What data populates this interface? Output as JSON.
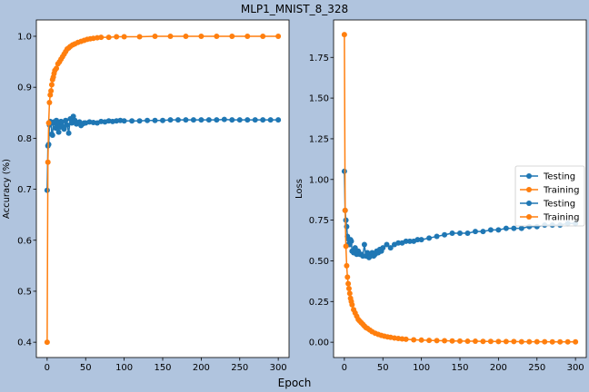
{
  "figure": {
    "title": "MLP1_MNIST_8_328",
    "xlabel": "Epoch",
    "background": "#b0c4de"
  },
  "chart_data": [
    {
      "type": "line",
      "ylabel": "Accuracy (%)",
      "xlim": [
        -14,
        314
      ],
      "ylim": [
        0.37,
        1.032
      ],
      "xticks": [
        0,
        50,
        100,
        150,
        200,
        250,
        300
      ],
      "yticks": [
        0.4,
        0.5,
        0.6,
        0.7,
        0.8,
        0.9,
        1.0
      ],
      "ytick_labels": [
        "0.4",
        "0.5",
        "0.6",
        "0.7",
        "0.8",
        "0.9",
        "1.0"
      ],
      "legend": false,
      "series": [
        {
          "role": "testing",
          "color": "#1f77b4",
          "x": [
            0,
            1,
            2,
            3,
            4,
            5,
            6,
            7,
            8,
            9,
            10,
            11,
            12,
            13,
            14,
            15,
            16,
            17,
            18,
            19,
            20,
            22,
            24,
            26,
            28,
            30,
            32,
            34,
            36,
            38,
            40,
            42,
            44,
            46,
            48,
            50,
            55,
            60,
            65,
            70,
            75,
            80,
            85,
            90,
            95,
            100,
            110,
            120,
            130,
            140,
            150,
            160,
            170,
            180,
            190,
            200,
            210,
            220,
            230,
            240,
            250,
            260,
            270,
            280,
            290,
            300
          ],
          "y": [
            0.698,
            0.785,
            0.788,
            0.826,
            0.833,
            0.83,
            0.808,
            0.806,
            0.83,
            0.832,
            0.83,
            0.82,
            0.835,
            0.826,
            0.83,
            0.812,
            0.83,
            0.822,
            0.833,
            0.831,
            0.823,
            0.818,
            0.835,
            0.826,
            0.81,
            0.838,
            0.83,
            0.843,
            0.835,
            0.828,
            0.83,
            0.832,
            0.825,
            0.828,
            0.83,
            0.83,
            0.832,
            0.831,
            0.83,
            0.833,
            0.832,
            0.834,
            0.833,
            0.834,
            0.835,
            0.834,
            0.834,
            0.834,
            0.835,
            0.835,
            0.835,
            0.836,
            0.836,
            0.836,
            0.836,
            0.836,
            0.836,
            0.836,
            0.837,
            0.836,
            0.836,
            0.836,
            0.836,
            0.836,
            0.836,
            0.836
          ]
        },
        {
          "role": "training",
          "color": "#ff7f0e",
          "x": [
            0,
            1,
            2,
            3,
            4,
            5,
            6,
            7,
            8,
            9,
            10,
            12,
            14,
            16,
            18,
            20,
            22,
            24,
            26,
            28,
            30,
            33,
            36,
            40,
            44,
            48,
            52,
            56,
            60,
            65,
            70,
            80,
            90,
            100,
            120,
            140,
            160,
            180,
            200,
            220,
            240,
            260,
            280,
            300
          ],
          "y": [
            0.4,
            0.753,
            0.83,
            0.87,
            0.885,
            0.893,
            0.905,
            0.915,
            0.92,
            0.927,
            0.933,
            0.937,
            0.946,
            0.95,
            0.955,
            0.96,
            0.965,
            0.97,
            0.975,
            0.977,
            0.98,
            0.983,
            0.985,
            0.988,
            0.99,
            0.992,
            0.994,
            0.995,
            0.996,
            0.997,
            0.998,
            0.998,
            0.999,
            0.999,
            0.999,
            1.0,
            1.0,
            1.0,
            1.0,
            1.0,
            1.0,
            1.0,
            1.0,
            1.0
          ]
        }
      ]
    },
    {
      "type": "line",
      "ylabel": "Loss",
      "xlim": [
        -14,
        314
      ],
      "ylim": [
        -0.094,
        1.98
      ],
      "xticks": [
        0,
        50,
        100,
        150,
        200,
        250,
        300
      ],
      "yticks": [
        0.0,
        0.25,
        0.5,
        0.75,
        1.0,
        1.25,
        1.5,
        1.75
      ],
      "ytick_labels": [
        "0.00",
        "0.25",
        "0.50",
        "0.75",
        "1.00",
        "1.25",
        "1.50",
        "1.75"
      ],
      "legend": true,
      "legend_loc": "center right",
      "series": [
        {
          "name": "Testing",
          "color": "#1f77b4",
          "x": [
            0,
            1,
            2,
            3,
            4,
            5,
            6,
            7,
            8,
            9,
            10,
            12,
            14,
            16,
            18,
            20,
            22,
            24,
            26,
            28,
            30,
            32,
            34,
            36,
            38,
            40,
            42,
            44,
            46,
            48,
            50,
            55,
            60,
            65,
            70,
            75,
            80,
            85,
            90,
            95,
            100,
            110,
            120,
            130,
            140,
            150,
            160,
            170,
            180,
            190,
            200,
            210,
            220,
            230,
            240,
            250,
            260,
            270,
            280,
            290,
            300
          ],
          "y": [
            1.05,
            0.81,
            0.75,
            0.71,
            0.65,
            0.6,
            0.63,
            0.6,
            0.63,
            0.62,
            0.56,
            0.55,
            0.58,
            0.54,
            0.56,
            0.54,
            0.54,
            0.53,
            0.6,
            0.53,
            0.55,
            0.52,
            0.53,
            0.55,
            0.53,
            0.54,
            0.56,
            0.55,
            0.57,
            0.56,
            0.58,
            0.6,
            0.58,
            0.6,
            0.61,
            0.61,
            0.62,
            0.62,
            0.62,
            0.63,
            0.63,
            0.64,
            0.65,
            0.66,
            0.67,
            0.67,
            0.67,
            0.68,
            0.68,
            0.69,
            0.69,
            0.7,
            0.7,
            0.7,
            0.71,
            0.71,
            0.72,
            0.72,
            0.72,
            0.73,
            0.73
          ]
        },
        {
          "name": "Training",
          "color": "#ff7f0e",
          "x": [
            0,
            1,
            2,
            3,
            4,
            5,
            6,
            7,
            8,
            9,
            10,
            12,
            14,
            16,
            18,
            20,
            22,
            24,
            26,
            28,
            30,
            33,
            36,
            40,
            44,
            48,
            52,
            56,
            60,
            65,
            70,
            75,
            80,
            90,
            100,
            110,
            120,
            130,
            140,
            150,
            160,
            170,
            180,
            190,
            200,
            210,
            220,
            230,
            240,
            250,
            260,
            270,
            280,
            290,
            300
          ],
          "y": [
            1.89,
            0.81,
            0.59,
            0.47,
            0.4,
            0.36,
            0.33,
            0.3,
            0.27,
            0.25,
            0.23,
            0.2,
            0.18,
            0.16,
            0.14,
            0.13,
            0.12,
            0.11,
            0.1,
            0.09,
            0.085,
            0.075,
            0.065,
            0.055,
            0.048,
            0.042,
            0.037,
            0.033,
            0.03,
            0.026,
            0.023,
            0.02,
            0.018,
            0.015,
            0.013,
            0.011,
            0.01,
            0.009,
            0.008,
            0.007,
            0.006,
            0.006,
            0.005,
            0.005,
            0.004,
            0.004,
            0.004,
            0.003,
            0.003,
            0.003,
            0.003,
            0.002,
            0.002,
            0.002,
            0.002
          ]
        },
        {
          "name": "Testing",
          "color": "#1f77b4",
          "legend_only": true
        },
        {
          "name": "Training",
          "color": "#ff7f0e",
          "legend_only": true
        }
      ]
    }
  ]
}
